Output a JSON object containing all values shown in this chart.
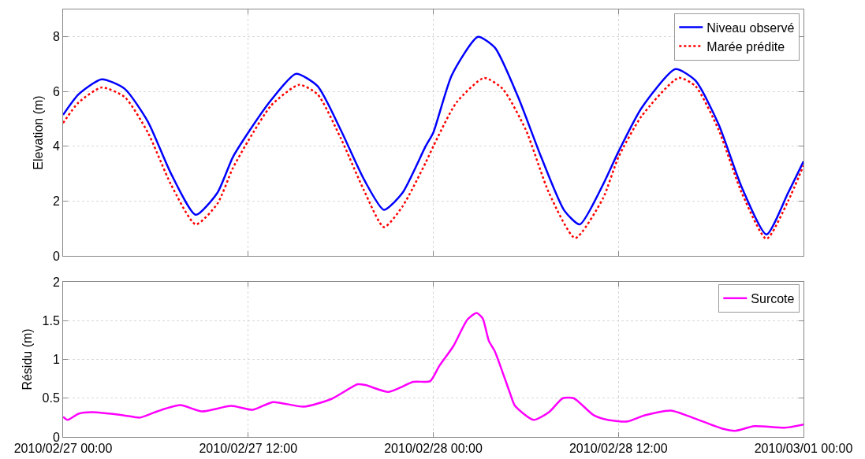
{
  "chart_data": [
    {
      "type": "line",
      "ylabel": "Elevation (m)",
      "xlim": [
        "2010-02-27T00:00",
        "2010-03-01T00:00"
      ],
      "xticks": [
        {
          "value": "2010-02-27T00:00",
          "label": null
        },
        {
          "value": "2010-02-27T12:00",
          "label": null
        },
        {
          "value": "2010-02-28T00:00",
          "label": null
        },
        {
          "value": "2010-02-28T12:00",
          "label": null
        },
        {
          "value": "2010-03-01T00:00",
          "label": null
        }
      ],
      "ylim": [
        0,
        9
      ],
      "yticks": [
        0,
        2,
        4,
        6,
        8
      ],
      "grid": true,
      "legend": "top right",
      "tick_labels": "y",
      "series": [
        {
          "name": "Niveau observé",
          "color": "#0000ff",
          "line_style": "solid",
          "x": [
            "2010-02-27T00:00",
            "2010-02-27T01:00",
            "2010-02-27T02:30",
            "2010-02-27T04:00",
            "2010-02-27T05:30",
            "2010-02-27T07:00",
            "2010-02-27T08:36",
            "2010-02-27T10:00",
            "2010-02-27T11:00",
            "2010-02-27T12:00",
            "2010-02-27T13:30",
            "2010-02-27T15:06",
            "2010-02-27T16:30",
            "2010-02-27T18:00",
            "2010-02-27T19:30",
            "2010-02-27T20:48",
            "2010-02-27T22:00",
            "2010-02-27T23:30",
            "2010-02-28T00:00",
            "2010-02-28T01:12",
            "2010-02-28T02:54",
            "2010-02-28T04:00",
            "2010-02-28T05:30",
            "2010-02-28T07:00",
            "2010-02-28T08:30",
            "2010-02-28T09:30",
            "2010-02-28T11:00",
            "2010-02-28T12:00",
            "2010-02-28T13:30",
            "2010-02-28T15:42",
            "2010-02-28T17:00",
            "2010-02-28T18:30",
            "2010-02-28T20:00",
            "2010-02-28T21:36",
            "2010-02-28T23:00",
            "2010-03-01T00:00"
          ],
          "values": [
            5.15,
            5.9,
            6.45,
            6.1,
            4.9,
            3.0,
            1.5,
            2.3,
            3.6,
            4.5,
            5.7,
            6.65,
            6.2,
            4.6,
            2.8,
            1.68,
            2.3,
            4.0,
            4.5,
            6.6,
            8.0,
            7.6,
            5.8,
            3.6,
            1.65,
            1.15,
            2.6,
            3.8,
            5.4,
            6.82,
            6.4,
            4.8,
            2.5,
            0.78,
            2.3,
            3.45
          ]
        },
        {
          "name": "Marée prédite",
          "color": "#ff0000",
          "line_style": "dotted",
          "x": [
            "2010-02-27T00:00",
            "2010-02-27T01:00",
            "2010-02-27T02:30",
            "2010-02-27T04:00",
            "2010-02-27T05:30",
            "2010-02-27T07:00",
            "2010-02-27T08:36",
            "2010-02-27T10:00",
            "2010-02-27T11:00",
            "2010-02-27T12:00",
            "2010-02-27T13:30",
            "2010-02-27T15:18",
            "2010-02-27T16:30",
            "2010-02-27T18:00",
            "2010-02-27T19:30",
            "2010-02-27T20:48",
            "2010-02-27T22:00",
            "2010-02-27T23:30",
            "2010-02-28T00:00",
            "2010-02-28T01:30",
            "2010-02-28T03:18",
            "2010-02-28T04:30",
            "2010-02-28T06:00",
            "2010-02-28T07:30",
            "2010-02-28T09:12",
            "2010-02-28T11:00",
            "2010-02-28T12:00",
            "2010-02-28T13:30",
            "2010-02-28T15:54",
            "2010-02-28T17:00",
            "2010-02-28T18:30",
            "2010-02-28T20:00",
            "2010-02-28T21:36",
            "2010-02-28T23:00",
            "2010-03-01T00:00"
          ],
          "values": [
            4.85,
            5.6,
            6.15,
            5.8,
            4.5,
            2.6,
            1.15,
            1.9,
            3.2,
            4.2,
            5.5,
            6.25,
            5.9,
            4.3,
            2.4,
            1.05,
            1.8,
            3.4,
            4.0,
            5.6,
            6.5,
            6.1,
            4.6,
            2.3,
            0.65,
            2.1,
            3.6,
            5.1,
            6.5,
            6.2,
            4.6,
            2.3,
            0.62,
            2.0,
            3.3
          ]
        }
      ]
    },
    {
      "type": "line",
      "ylabel": "Résidu (m)",
      "xlim": [
        "2010-02-27T00:00",
        "2010-03-01T00:00"
      ],
      "xticks": [
        {
          "value": "2010-02-27T00:00",
          "label": "2010/02/27 00:00"
        },
        {
          "value": "2010-02-27T12:00",
          "label": "2010/02/27 12:00"
        },
        {
          "value": "2010-02-28T00:00",
          "label": "2010/02/28 00:00"
        },
        {
          "value": "2010-02-28T12:00",
          "label": "2010/02/28 12:00"
        },
        {
          "value": "2010-03-01T00:00",
          "label": "2010/03/01 00:00"
        }
      ],
      "ylim": [
        0,
        2
      ],
      "yticks": [
        0,
        0.5,
        1,
        1.5,
        2
      ],
      "grid": true,
      "legend": "top right",
      "series": [
        {
          "name": "Surcote",
          "color": "#ff00ff",
          "line_style": "solid",
          "x": [
            "2010-02-27T00:00",
            "2010-02-27T00:18",
            "2010-02-27T01:00",
            "2010-02-27T01:54",
            "2010-02-27T03:54",
            "2010-02-27T05:00",
            "2010-02-27T06:06",
            "2010-02-27T07:36",
            "2010-02-27T09:00",
            "2010-02-27T10:54",
            "2010-02-27T12:18",
            "2010-02-27T13:36",
            "2010-02-27T15:36",
            "2010-02-27T17:24",
            "2010-02-27T19:06",
            "2010-02-27T19:36",
            "2010-02-27T21:06",
            "2010-02-27T22:42",
            "2010-02-27T23:48",
            "2010-02-28T00:24",
            "2010-02-28T01:18",
            "2010-02-28T02:12",
            "2010-02-28T02:48",
            "2010-02-28T03:12",
            "2010-02-28T03:36",
            "2010-02-28T04:00",
            "2010-02-28T05:00",
            "2010-02-28T05:18",
            "2010-02-28T06:30",
            "2010-02-28T07:30",
            "2010-02-28T08:24",
            "2010-02-28T09:06",
            "2010-02-28T10:24",
            "2010-02-28T11:18",
            "2010-02-28T12:36",
            "2010-02-28T13:42",
            "2010-02-28T15:24",
            "2010-02-28T16:48",
            "2010-02-28T18:42",
            "2010-02-28T19:36",
            "2010-02-28T20:48",
            "2010-02-28T22:48",
            "2010-03-01T00:00"
          ],
          "values": [
            0.26,
            0.22,
            0.3,
            0.32,
            0.28,
            0.25,
            0.33,
            0.41,
            0.33,
            0.4,
            0.35,
            0.45,
            0.39,
            0.49,
            0.68,
            0.67,
            0.58,
            0.71,
            0.72,
            0.92,
            1.17,
            1.51,
            1.6,
            1.53,
            1.24,
            1.1,
            0.55,
            0.4,
            0.22,
            0.32,
            0.5,
            0.5,
            0.28,
            0.22,
            0.2,
            0.28,
            0.34,
            0.25,
            0.11,
            0.08,
            0.14,
            0.12,
            0.16
          ]
        }
      ]
    }
  ]
}
